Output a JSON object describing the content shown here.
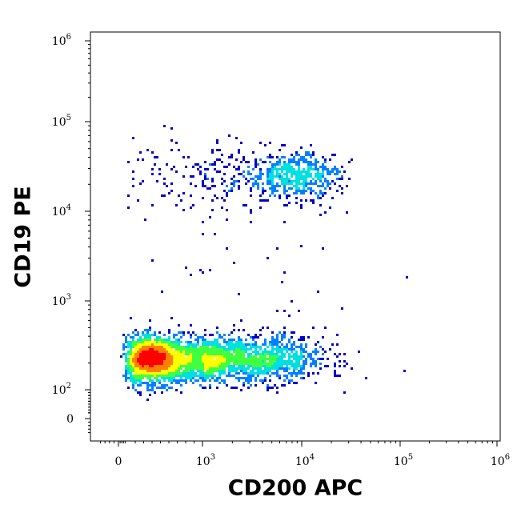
{
  "chart_data": {
    "type": "scatter",
    "title": "",
    "xlabel": "CD200 APC",
    "ylabel": "CD19 PE",
    "x_scale": "biexponential",
    "y_scale": "biexponential",
    "xlim": [
      -100,
      1000000
    ],
    "ylim": [
      -100,
      1000000
    ],
    "x_ticks": [
      {
        "value": 0,
        "base": "0",
        "exp": ""
      },
      {
        "value": 1000,
        "base": "10",
        "exp": "3"
      },
      {
        "value": 10000,
        "base": "10",
        "exp": "4"
      },
      {
        "value": 100000,
        "base": "10",
        "exp": "5"
      },
      {
        "value": 1000000,
        "base": "10",
        "exp": "6"
      }
    ],
    "y_ticks": [
      {
        "value": 0,
        "base": "0",
        "exp": ""
      },
      {
        "value": 100,
        "base": "10",
        "exp": "2"
      },
      {
        "value": 1000,
        "base": "10",
        "exp": "3"
      },
      {
        "value": 10000,
        "base": "10",
        "exp": "4"
      },
      {
        "value": 100000,
        "base": "10",
        "exp": "5"
      },
      {
        "value": 1000000,
        "base": "10",
        "exp": "6"
      }
    ],
    "color_mode": "density",
    "density_colors": [
      "#0000cc",
      "#0080ff",
      "#00e0e0",
      "#40ff40",
      "#ffff00",
      "#ff8000",
      "#ff0000"
    ],
    "populations": [
      {
        "center_x": 500,
        "center_y": 220,
        "spread_x_decades": 0.28,
        "spread_y_decades": 0.13,
        "events": 2600
      },
      {
        "center_x": 3500,
        "center_y": 220,
        "spread_x_decades": 0.35,
        "spread_y_decades": 0.13,
        "events": 1100
      },
      {
        "center_x": 9000,
        "center_y": 25000,
        "spread_x_decades": 0.22,
        "spread_y_decades": 0.12,
        "events": 450
      },
      {
        "center_x": 2000,
        "center_y": 25000,
        "spread_x_decades": 0.5,
        "spread_y_decades": 0.2,
        "events": 260
      }
    ],
    "grid": false,
    "legend": "none"
  }
}
